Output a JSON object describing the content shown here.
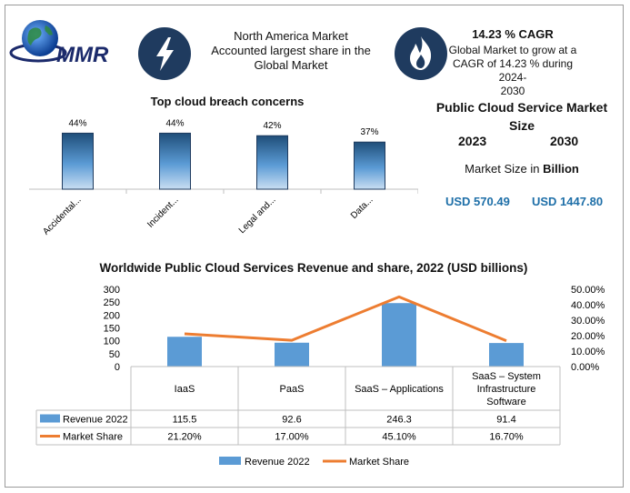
{
  "header": {
    "logo_text": "MMR",
    "box1": {
      "line1": "North America Market",
      "line2": "Accounted largest share in the",
      "line3": "Global Market"
    },
    "box2": {
      "title": "14.23 % CAGR",
      "line1": "Global Market to grow at a",
      "line2": "CAGR of 14.23 % during 2024-",
      "line3": "2030"
    },
    "icons": {
      "left": "lightning-bolt-icon",
      "right": "flame-icon",
      "logo": "globe-icon"
    }
  },
  "market_size": {
    "title_line1": "Public Cloud Service Market",
    "title_line2": "Size",
    "year1": "2023",
    "year2": "2030",
    "label_prefix": "Market Size in ",
    "label_bold": "Billion",
    "value1": "USD 570.49",
    "value2": "USD 1447.80"
  },
  "colors": {
    "bar": "#5b9bd5",
    "bar_dark": "#1f4e79",
    "line": "#ed7d31",
    "icon_bg": "#1f3b5f",
    "value_text": "#1e6fa8"
  },
  "chart_data": [
    {
      "type": "bar",
      "title": "Top cloud breach concerns",
      "categories": [
        "Accidental...",
        "Incident...",
        "Legal and...",
        "Data..."
      ],
      "values": [
        44,
        44,
        42,
        37
      ],
      "data_labels": [
        "44%",
        "44%",
        "42%",
        "37%"
      ],
      "ylim": [
        0,
        50
      ],
      "grid": false
    },
    {
      "type": "bar",
      "title": "Worldwide Public Cloud Services Revenue and share, 2022 (USD billions)",
      "categories": [
        "IaaS",
        "PaaS",
        "SaaS – Applications",
        "SaaS – System Infrastructure Software"
      ],
      "series": [
        {
          "name": "Revenue 2022",
          "type": "bar",
          "values": [
            115.5,
            92.6,
            246.3,
            91.4
          ],
          "table_values": [
            "115.5",
            "92.6",
            "246.3",
            "91.4"
          ]
        },
        {
          "name": "Market Share",
          "type": "line",
          "axis": "right",
          "values": [
            21.2,
            17.0,
            45.1,
            16.7
          ],
          "table_values": [
            "21.20%",
            "17.00%",
            "45.10%",
            "16.70%"
          ]
        }
      ],
      "ylim": [
        0,
        300
      ],
      "y_ticks": [
        "300",
        "250",
        "200",
        "150",
        "100",
        "50",
        "0"
      ],
      "y2lim": [
        0,
        50
      ],
      "y2_ticks": [
        "50.00%",
        "40.00%",
        "30.00%",
        "20.00%",
        "10.00%",
        "0.00%"
      ],
      "legend": [
        "Revenue 2022",
        "Market Share"
      ],
      "legend_position": "bottom",
      "grid": false
    }
  ]
}
